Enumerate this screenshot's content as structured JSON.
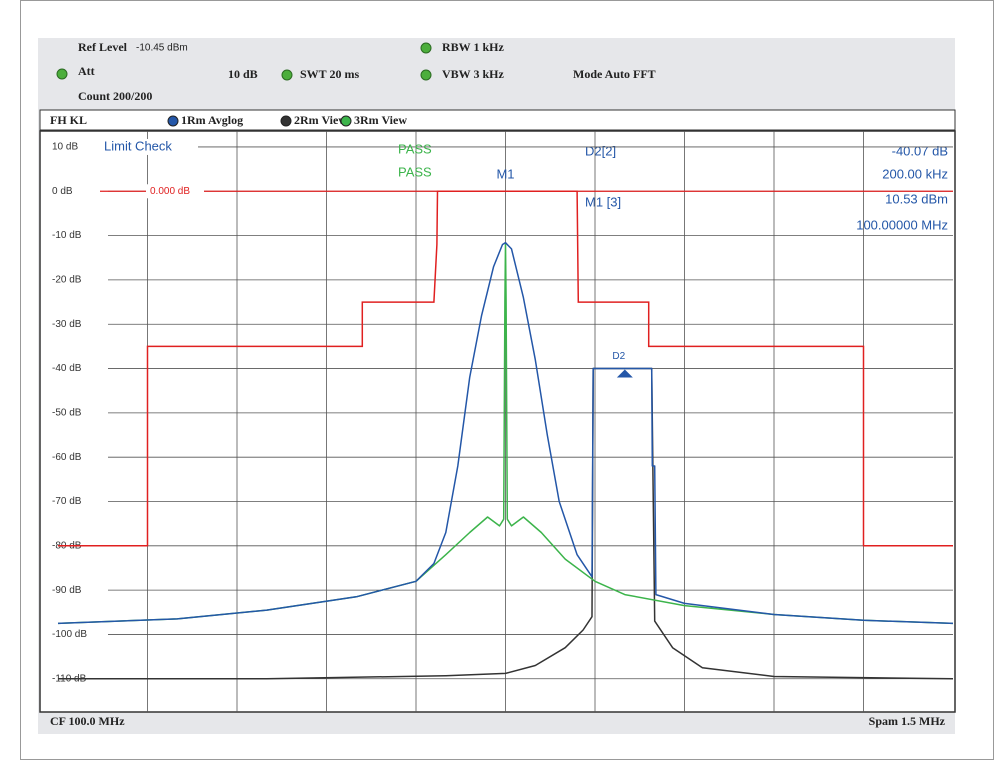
{
  "instrument": {
    "ref_level_label": "Ref Level",
    "ref_level_value": "-10.45 dBm",
    "att_label": "Att",
    "att_value": "10 dB",
    "swt": "SWT 20 ms",
    "rbw": "RBW 1 kHz",
    "vbw": "VBW 3 kHz",
    "mode": "Mode Auto FFT",
    "count": "Count 200/200",
    "trace_bar_label": "FH KL",
    "center_frequency": "CF 100.0 MHz",
    "span": "Spam 1.5 MHz"
  },
  "chart_data": {
    "type": "line",
    "xlim": [
      99.25,
      100.75
    ],
    "xticks": [
      99.4,
      99.55,
      99.7,
      99.85,
      100,
      100.15,
      100.3,
      100.45,
      100.6
    ],
    "ylim": [
      -117.5,
      13.6
    ],
    "yticks": [
      {
        "value": 10,
        "label": "10 dB"
      },
      {
        "value": 0,
        "label": "0 dB"
      },
      {
        "value": -10,
        "label": "-10 dB"
      },
      {
        "value": -20,
        "label": "-20 dB"
      },
      {
        "value": -30,
        "label": "-30 dB"
      },
      {
        "value": -40,
        "label": "-40 dB"
      },
      {
        "value": -50,
        "label": "-50 dB"
      },
      {
        "value": -60,
        "label": "-60 dB"
      },
      {
        "value": -70,
        "label": "-70 dB"
      },
      {
        "value": -80,
        "label": "-80 dB"
      },
      {
        "value": -90,
        "label": "-90 dB"
      },
      {
        "value": -100,
        "label": "-100 dB"
      },
      {
        "value": -110,
        "label": "-110 dB"
      }
    ],
    "grid": true,
    "display_line": {
      "value": 0,
      "label": "0.000 dB",
      "color": "#e02020"
    },
    "limit_line": {
      "label": "Limit Check",
      "color": "#e02020",
      "result_labels": [
        "PASS",
        "PASS"
      ],
      "x": [
        99.25,
        99.4,
        99.4,
        99.76,
        99.76,
        99.88,
        99.885,
        99.886,
        100.12,
        100.122,
        100.24,
        100.24,
        100.6,
        100.6,
        100.75
      ],
      "values": [
        -80,
        -80,
        -35,
        -35,
        -25,
        -25,
        -12,
        0,
        0,
        -25,
        -25,
        -35,
        -35,
        -80,
        -80
      ]
    },
    "series": [
      {
        "name": "1Rm Avglog",
        "color": "#2457a8",
        "x": [
          99.25,
          99.45,
          99.6,
          99.75,
          99.85,
          99.88,
          99.9,
          99.92,
          99.94,
          99.96,
          99.98,
          99.995,
          100.0,
          100.01,
          100.03,
          100.05,
          100.07,
          100.09,
          100.12,
          100.145,
          100.147,
          100.245,
          100.246,
          100.25,
          100.252,
          100.3,
          100.45,
          100.6,
          100.75
        ],
        "values": [
          -97.5,
          -96.5,
          -94.5,
          -91.5,
          -88,
          -84,
          -77,
          -62,
          -42,
          -28,
          -17,
          -12,
          -11.6,
          -13,
          -24,
          -38,
          -55,
          -70,
          -82,
          -87,
          -40,
          -40,
          -62,
          -62,
          -91,
          -93,
          -95.5,
          -96.8,
          -97.5
        ]
      },
      {
        "name": "2Rm View",
        "color": "#333333",
        "x": [
          99.25,
          99.6,
          99.9,
          100.0,
          100.05,
          100.1,
          100.13,
          100.145,
          100.147,
          100.245,
          100.25,
          100.28,
          100.33,
          100.45,
          100.75
        ],
        "values": [
          -110,
          -110,
          -109.3,
          -108.8,
          -107,
          -103,
          -99,
          -96,
          -40,
          -40,
          -97,
          -103,
          -107.5,
          -109.5,
          -110
        ]
      },
      {
        "name": "3Rm View",
        "color": "#3cb44b",
        "x": [
          99.25,
          99.45,
          99.6,
          99.75,
          99.85,
          99.9,
          99.94,
          99.97,
          99.99,
          99.997,
          99.999,
          100.0,
          100.001,
          100.003,
          100.01,
          100.03,
          100.06,
          100.1,
          100.15,
          100.2,
          100.3,
          100.45,
          100.6,
          100.75
        ],
        "values": [
          -97.5,
          -96.5,
          -94.5,
          -91.5,
          -88,
          -82,
          -77,
          -73.5,
          -75.5,
          -74,
          -25,
          -11.6,
          -25,
          -74,
          -75.5,
          -73.5,
          -77,
          -83,
          -88,
          -91,
          -93.5,
          -95.5,
          -96.8,
          -97.5
        ]
      }
    ],
    "markers": [
      {
        "label": "M1",
        "x": 100.0
      },
      {
        "label": "D2",
        "x": 100.2,
        "y": -40
      }
    ],
    "readouts": [
      {
        "label": "D2[2]",
        "lines": [
          "-40.07 dB",
          "200.00 kHz"
        ]
      },
      {
        "label": "M1 [3]",
        "lines": [
          "10.53 dBm",
          "100.00000 MHz"
        ]
      }
    ]
  }
}
